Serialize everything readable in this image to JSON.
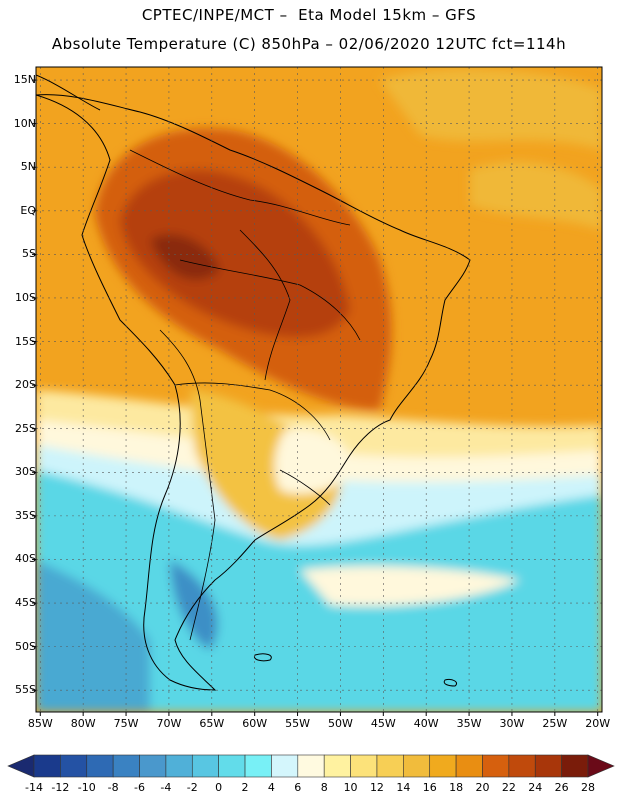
{
  "header": {
    "line1": "CPTEC/INPE/MCT –  Eta Model 15km – GFS",
    "line2": "Absolute Temperature (C) 850hPa – 02/06/2020 12UTC fct=114h"
  },
  "axes": {
    "lat_labels": [
      "15N",
      "10N",
      "5N",
      "EQ",
      "5S",
      "10S",
      "15S",
      "20S",
      "25S",
      "30S",
      "35S",
      "40S",
      "45S",
      "50S",
      "55S"
    ],
    "lon_labels": [
      "85W",
      "80W",
      "75W",
      "70W",
      "65W",
      "60W",
      "55W",
      "50W",
      "45W",
      "40W",
      "35W",
      "30W",
      "25W",
      "20W"
    ],
    "lat_range": [
      16.5,
      -57.5
    ],
    "lon_range": [
      -85.5,
      -19.5
    ]
  },
  "colorbar": {
    "labels": [
      "-14",
      "-12",
      "-10",
      "-8",
      "-6",
      "-4",
      "-2",
      "0",
      "2",
      "4",
      "6",
      "8",
      "10",
      "12",
      "14",
      "16",
      "18",
      "20",
      "22",
      "24",
      "26",
      "28"
    ],
    "colors": [
      "#1a3a8c",
      "#2452a4",
      "#2e6ab4",
      "#3a82c2",
      "#4a98cc",
      "#50b0d8",
      "#58c6e2",
      "#62dcea",
      "#78f0f6",
      "#d4f6fc",
      "#fffae0",
      "#fff2a0",
      "#fce27a",
      "#f7cf55",
      "#f1bc3c",
      "#f0aa1e",
      "#e98e12",
      "#d6600e",
      "#c04a0c",
      "#a8360a",
      "#7a1c0a"
    ],
    "low_color": "#1a2a70",
    "high_color": "#6a0a18"
  },
  "map": {
    "ocean_color": "#f2a31f"
  }
}
